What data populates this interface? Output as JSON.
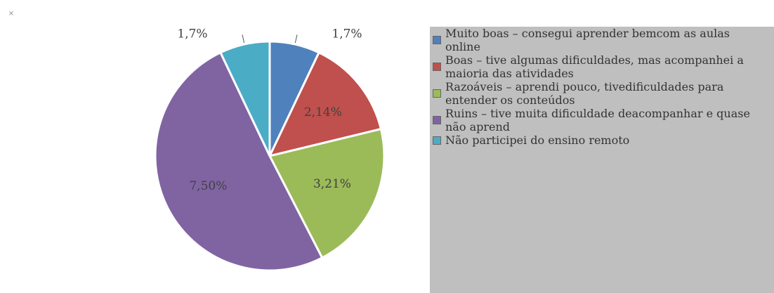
{
  "chart_data": {
    "type": "pie",
    "categories": [
      "Muito boas – consegui aprender bemcom as aulas online",
      "Boas – tive algumas dificuldades, mas acompanhei a maioria das atividades",
      "Razoáveis – aprendi pouco, tivedificuldades para entender os conteúdos",
      "Ruins – tive muita dificuldade deacompanhar e quase não aprend",
      "Não participei do ensino remoto"
    ],
    "values": [
      7,
      14,
      21,
      50,
      7
    ],
    "value_labels": [
      "1,7%",
      "2,14%",
      "3,21%",
      "7,50%",
      "1,7%"
    ],
    "colors": [
      "#4f81bd",
      "#c0504d",
      "#9bbb59",
      "#8064a2",
      "#4bacc6"
    ],
    "legend": "right"
  }
}
